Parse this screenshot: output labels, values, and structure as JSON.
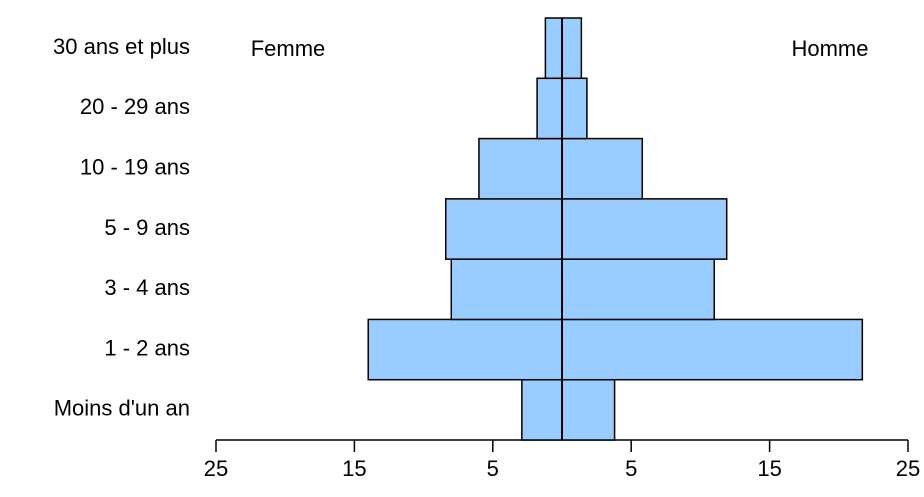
{
  "chart_data": {
    "type": "pyramid",
    "categories": [
      "Moins d'un an",
      "1 - 2 ans",
      "3 - 4 ans",
      "5 - 9 ans",
      "10 - 19 ans",
      "20 - 29 ans",
      "30 ans et plus"
    ],
    "series": [
      {
        "name": "Femme",
        "color": "#99ccff",
        "side": "left",
        "values": [
          2.9,
          14.0,
          8.0,
          8.4,
          6.0,
          1.8,
          1.2
        ]
      },
      {
        "name": "Homme",
        "color": "#99ccff",
        "side": "right",
        "values": [
          3.8,
          21.7,
          11.0,
          11.9,
          5.8,
          1.8,
          1.4
        ]
      }
    ],
    "xlim": [
      -25,
      25
    ],
    "xticks": [
      {
        "value": -25,
        "label": "25"
      },
      {
        "value": -15,
        "label": "15"
      },
      {
        "value": -5,
        "label": "5"
      },
      {
        "value": 5,
        "label": "5"
      },
      {
        "value": 15,
        "label": "15"
      },
      {
        "value": 25,
        "label": "25"
      }
    ]
  }
}
